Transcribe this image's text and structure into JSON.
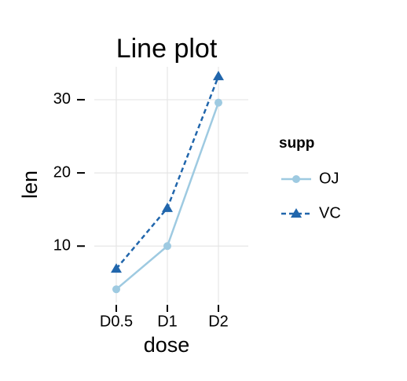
{
  "chart_data": {
    "type": "line",
    "title": "Line plot",
    "x_label": "dose",
    "y_label": "len",
    "categories": [
      "D0.5",
      "D1",
      "D2"
    ],
    "series": [
      {
        "name": "OJ",
        "color": "#9ecae1",
        "dash": "solid",
        "marker": "circle",
        "values": [
          4.1,
          10,
          29.6
        ]
      },
      {
        "name": "VC",
        "color": "#2166ac",
        "dash": "dashed",
        "marker": "triangle",
        "values": [
          6.9,
          15.2,
          33.2
        ]
      }
    ],
    "ylim": [
      2.3,
      34.5
    ],
    "yticks": [
      10,
      20,
      30
    ],
    "grid": true,
    "legend_title": "supp",
    "legend_position": "right"
  }
}
